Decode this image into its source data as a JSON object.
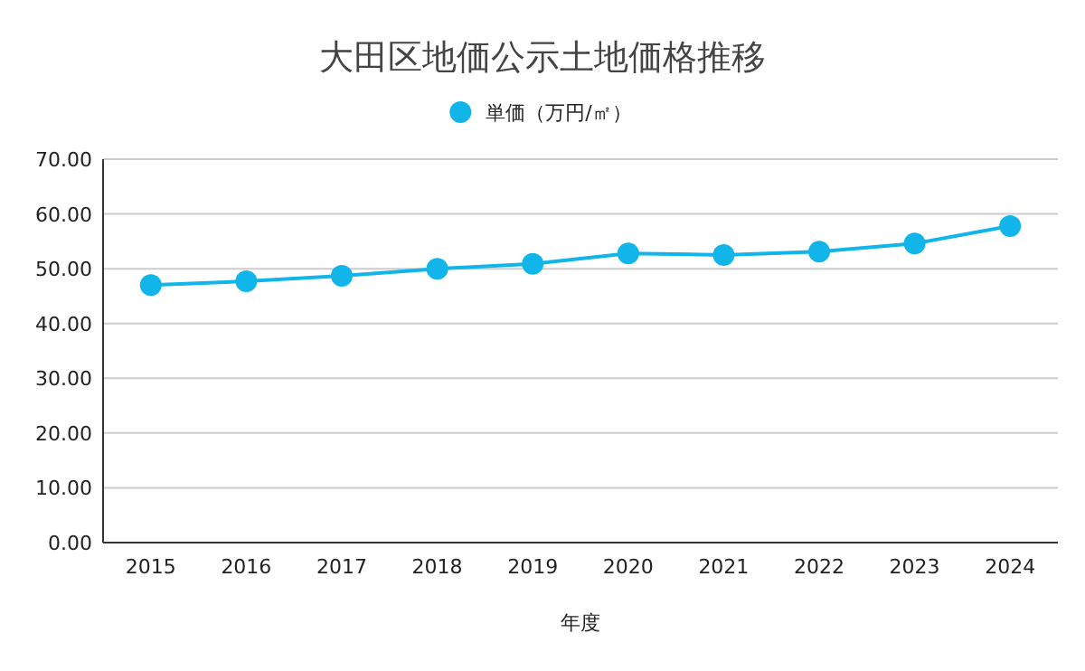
{
  "chart_data": {
    "type": "line",
    "title": "大田区地価公示土地価格推移",
    "xlabel": "年度",
    "categories": [
      "2015",
      "2016",
      "2017",
      "2018",
      "2019",
      "2020",
      "2021",
      "2022",
      "2023",
      "2024"
    ],
    "series": [
      {
        "name": "単価（万円/㎡）",
        "color": "#12b5ea",
        "values": [
          47.0,
          47.7,
          48.7,
          50.0,
          50.9,
          52.8,
          52.5,
          53.1,
          54.6,
          57.8
        ]
      }
    ],
    "ylim": [
      0,
      70
    ],
    "yticks": [
      {
        "value": 0,
        "label": "0.00"
      },
      {
        "value": 10,
        "label": "10.00"
      },
      {
        "value": 20,
        "label": "20.00"
      },
      {
        "value": 30,
        "label": "30.00"
      },
      {
        "value": 40,
        "label": "40.00"
      },
      {
        "value": 50,
        "label": "50.00"
      },
      {
        "value": 60,
        "label": "60.00"
      },
      {
        "value": 70,
        "label": "70.00"
      }
    ],
    "grid": "y",
    "legend": "top",
    "marker": "circle",
    "line_style": "solid"
  }
}
